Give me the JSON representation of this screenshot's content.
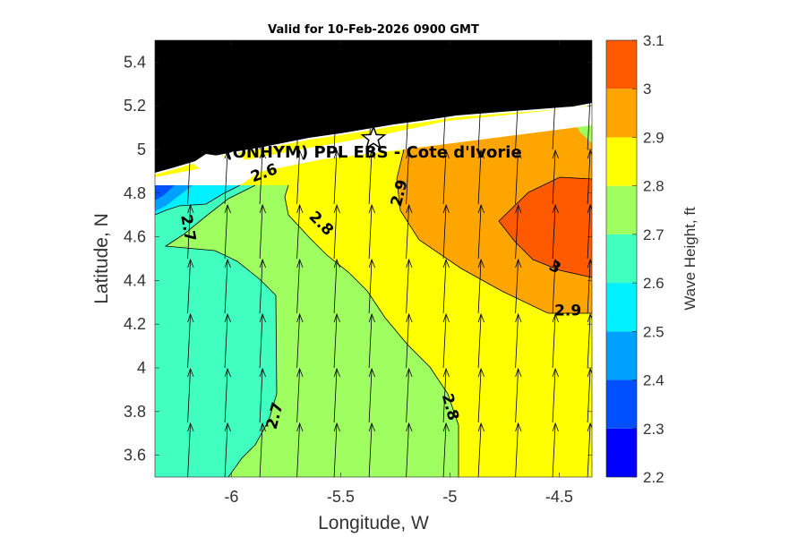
{
  "chart_data": {
    "type": "contour",
    "title": "Valid for 10-Feb-2026 0900 GMT",
    "xlabel": "Longitude, W",
    "ylabel": "Latitude, N",
    "xlim": [
      -6.35,
      -4.35
    ],
    "ylim": [
      3.5,
      5.5
    ],
    "x_ticks": [
      -6,
      -5.5,
      -5,
      -4.5
    ],
    "x_tick_labels": [
      "-6",
      "-5.5",
      "-5",
      "-4.5"
    ],
    "y_ticks": [
      3.6,
      3.8,
      4,
      4.2,
      4.4,
      4.6,
      4.8,
      5,
      5.2,
      5.4
    ],
    "y_tick_labels": [
      "3.6",
      "3.8",
      "4",
      "4.2",
      "4.4",
      "4.6",
      "4.8",
      "5",
      "5.2",
      "5.4"
    ],
    "colorbar": {
      "label": "Wave Height, ft",
      "levels": [
        2.2,
        2.3,
        2.4,
        2.5,
        2.6,
        2.7,
        2.8,
        2.9,
        3.0,
        3.1
      ],
      "tick_labels": [
        "2.2",
        "2.3",
        "2.4",
        "2.5",
        "2.6",
        "2.7",
        "2.8",
        "2.9",
        "3",
        "3.1"
      ],
      "colors": [
        "#0000ff",
        "#0050ff",
        "#00a0ff",
        "#00f0ff",
        "#40ffbf",
        "#a0ff60",
        "#ffff00",
        "#ffa500",
        "#ff5a00"
      ]
    },
    "contour_labels": [
      {
        "text": "2.6",
        "lon": -5.85,
        "lat": 4.89
      },
      {
        "text": "2.7",
        "lon": -6.2,
        "lat": 4.64
      },
      {
        "text": "2.8",
        "lon": -5.59,
        "lat": 4.66
      },
      {
        "text": "2.9",
        "lon": -5.23,
        "lat": 4.8
      },
      {
        "text": "3",
        "lon": -4.52,
        "lat": 4.46
      },
      {
        "text": "2.9",
        "lon": -4.46,
        "lat": 4.26
      },
      {
        "text": "2.7",
        "lon": -5.8,
        "lat": 3.78
      },
      {
        "text": "2.8",
        "lon": -5.0,
        "lat": 3.82
      }
    ],
    "site": {
      "name": "(ONHYM) PPL EBS  - Cote d'Ivorie",
      "lon": -5.35,
      "lat": 5.05
    },
    "arrow_lons": [
      -6.2,
      -6.03,
      -5.87,
      -5.7,
      -5.53,
      -5.37,
      -5.2,
      -5.03,
      -4.87,
      -4.7,
      -4.53,
      -4.37
    ],
    "arrow_direction": "northward, slight eastward tilt"
  }
}
